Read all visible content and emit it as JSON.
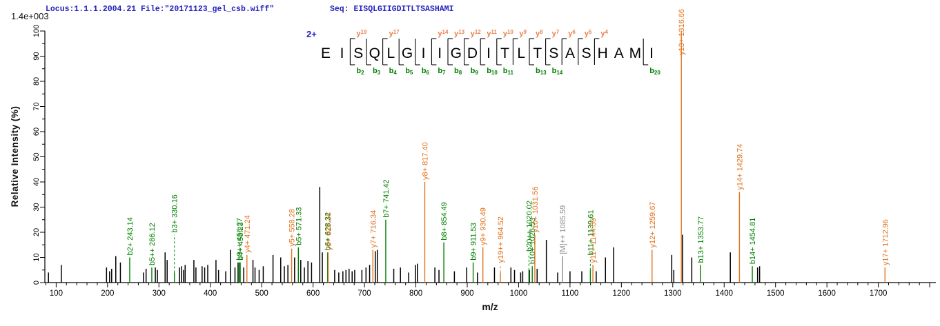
{
  "header": {
    "locus_file": "Locus:1.1.1.2004.21 File:\"20171123_gel_csb.wiff\"",
    "seq": "Seq: EISQLGIIGDITLTSASHAMI",
    "intensity_scale": "1.4e+003"
  },
  "colors": {
    "b_ion": "#008000",
    "y_ion": "#E2731E",
    "y_ladder": "#E8814F",
    "other_ion": "#8C8C8C",
    "header_text": "#2222BB",
    "charge_text": "#2222CC",
    "axis": "#000000",
    "peak": "#000000"
  },
  "chart_data": {
    "type": "bar",
    "xlabel": "m/z",
    "ylabel": "Relative  Intensity (%)",
    "x_axis": {
      "min": 78,
      "max": 1812,
      "label_start": 100,
      "label_end": 1700,
      "major_step": 100,
      "minor_step": 20
    },
    "y_axis": {
      "min": 0,
      "max": 100,
      "major_step": 10,
      "minor_step": 5
    },
    "precursor_charge": "2+",
    "peptide": {
      "residues": [
        "E",
        "I",
        "S",
        "Q",
        "L",
        "G",
        "I",
        "I",
        "G",
        "D",
        "I",
        "T",
        "L",
        "T",
        "S",
        "A",
        "S",
        "H",
        "A",
        "M",
        "I"
      ],
      "y_ions": [
        {
          "n": "19",
          "gap": 2
        },
        {
          "n": "17",
          "gap": 4
        },
        {
          "n": "14",
          "gap": 7
        },
        {
          "n": "13",
          "gap": 8
        },
        {
          "n": "12",
          "gap": 9
        },
        {
          "n": "11",
          "gap": 10
        },
        {
          "n": "10",
          "gap": 11
        },
        {
          "n": "9",
          "gap": 12
        },
        {
          "n": "8",
          "gap": 13
        },
        {
          "n": "7",
          "gap": 14
        },
        {
          "n": "6",
          "gap": 15
        },
        {
          "n": "5",
          "gap": 16
        },
        {
          "n": "4",
          "gap": 17
        }
      ],
      "b_ions": [
        {
          "n": "2",
          "gap": 2
        },
        {
          "n": "3",
          "gap": 3
        },
        {
          "n": "4",
          "gap": 4
        },
        {
          "n": "5",
          "gap": 5
        },
        {
          "n": "6",
          "gap": 6
        },
        {
          "n": "7",
          "gap": 7
        },
        {
          "n": "8",
          "gap": 8
        },
        {
          "n": "9",
          "gap": 9
        },
        {
          "n": "10",
          "gap": 10
        },
        {
          "n": "11",
          "gap": 11
        },
        {
          "n": "13",
          "gap": 13
        },
        {
          "n": "14",
          "gap": 14
        },
        {
          "n": "20",
          "gap": 20
        }
      ]
    },
    "labeled_peaks": [
      {
        "series": "b",
        "label": "b2+ 243.14",
        "mz": 243.14,
        "intensity": 10
      },
      {
        "series": "b",
        "label": "b5++ 286.12",
        "mz": 286.12,
        "intensity": 6
      },
      {
        "series": "b",
        "label": "b3+ 330.16",
        "mz": 330.16,
        "intensity": 4,
        "dashed": true,
        "label_at": 19
      },
      {
        "series": "b",
        "label": "b9++ 456.27",
        "mz": 456.27,
        "intensity": 8
      },
      {
        "series": "b",
        "label": "b4+ 458.23",
        "mz": 458.23,
        "intensity": 8
      },
      {
        "series": "y",
        "label": "y4+ 471.24",
        "mz": 471.24,
        "intensity": 11
      },
      {
        "series": "y",
        "label": "y5+ 558.28",
        "mz": 558.28,
        "intensity": 13.5
      },
      {
        "series": "b",
        "label": "b5+ 571.33",
        "mz": 571.33,
        "intensity": 14
      },
      {
        "series": "b",
        "label": "b6+ 628.32",
        "mz": 628.32,
        "intensity": 12
      },
      {
        "series": "y",
        "label": "y6+ 629.34",
        "mz": 629.34,
        "intensity": 12
      },
      {
        "series": "y",
        "label": "y7+ 716.34",
        "mz": 716.34,
        "intensity": 13
      },
      {
        "series": "b",
        "label": "b7+ 741.42",
        "mz": 741.42,
        "intensity": 25
      },
      {
        "series": "y",
        "label": "y8+ 817.40",
        "mz": 817.4,
        "intensity": 40
      },
      {
        "series": "b",
        "label": "b8+ 854.49",
        "mz": 854.49,
        "intensity": 16
      },
      {
        "series": "b",
        "label": "b9+ 911.53",
        "mz": 911.53,
        "intensity": 8
      },
      {
        "series": "y",
        "label": "y9+ 930.49",
        "mz": 930.49,
        "intensity": 14
      },
      {
        "series": "y",
        "label": "y19++ 964.52",
        "mz": 964.52,
        "intensity": 4,
        "dashed": true,
        "label_at": 7
      },
      {
        "series": "b",
        "label": "b20++ 1020.02",
        "mz": 1020.02,
        "intensity": 5,
        "dashed": true,
        "label_at": 11.5
      },
      {
        "series": "b",
        "label": "b10+ 1026.53",
        "mz": 1026.53,
        "intensity": 6.5
      },
      {
        "series": "y",
        "label": "y10+ 1031.56",
        "mz": 1031.56,
        "intensity": 19
      },
      {
        "series": "other",
        "label": "[M]++ 1085.59",
        "mz": 1085.59,
        "intensity": 10.5
      },
      {
        "series": "b",
        "label": "b11+ 1139.61",
        "mz": 1139.61,
        "intensity": 5,
        "dashed": true,
        "label_at": 10
      },
      {
        "series": "y",
        "label": "y11+ 1144.59",
        "mz": 1144.59,
        "intensity": 7
      },
      {
        "series": "y",
        "label": "y12+ 1259.67",
        "mz": 1259.67,
        "intensity": 13
      },
      {
        "series": "y",
        "label": "y13+ 1316.66",
        "mz": 1316.66,
        "intensity": 100
      },
      {
        "series": "b",
        "label": "b13+ 1353.77",
        "mz": 1353.77,
        "intensity": 7
      },
      {
        "series": "y",
        "label": "y14+ 1429.74",
        "mz": 1429.74,
        "intensity": 36
      },
      {
        "series": "b",
        "label": "b14+ 1454.81",
        "mz": 1454.81,
        "intensity": 6.5
      },
      {
        "series": "y",
        "label": "y17+ 1712.96",
        "mz": 1712.96,
        "intensity": 6
      }
    ],
    "unlabeled_peaks": [
      [
        85,
        4
      ],
      [
        110,
        7
      ],
      [
        198,
        6
      ],
      [
        204,
        4.5
      ],
      [
        208,
        5.5
      ],
      [
        216,
        10.5
      ],
      [
        225,
        8
      ],
      [
        270,
        4
      ],
      [
        275,
        5.5
      ],
      [
        293,
        6
      ],
      [
        297,
        5
      ],
      [
        312,
        12
      ],
      [
        316,
        9
      ],
      [
        340,
        6
      ],
      [
        344,
        6.5
      ],
      [
        348,
        5
      ],
      [
        351,
        7
      ],
      [
        368,
        9
      ],
      [
        372,
        6
      ],
      [
        384,
        6.5
      ],
      [
        389,
        6
      ],
      [
        395,
        7
      ],
      [
        411,
        9
      ],
      [
        416,
        5
      ],
      [
        430,
        4.5
      ],
      [
        439,
        13
      ],
      [
        448,
        6
      ],
      [
        454,
        8
      ],
      [
        465,
        6
      ],
      [
        483,
        9
      ],
      [
        487,
        6
      ],
      [
        495,
        5
      ],
      [
        503,
        6.5
      ],
      [
        522,
        11
      ],
      [
        537,
        10
      ],
      [
        544,
        6.5
      ],
      [
        551,
        7
      ],
      [
        564,
        10
      ],
      [
        576,
        9
      ],
      [
        583,
        6
      ],
      [
        590,
        8.5
      ],
      [
        597,
        8
      ],
      [
        613,
        38
      ],
      [
        618,
        12
      ],
      [
        642,
        5
      ],
      [
        650,
        4
      ],
      [
        658,
        4.5
      ],
      [
        664,
        5
      ],
      [
        670,
        5.5
      ],
      [
        676,
        4.5
      ],
      [
        681,
        5
      ],
      [
        695,
        5
      ],
      [
        703,
        6
      ],
      [
        710,
        7
      ],
      [
        721,
        12.5
      ],
      [
        725,
        13
      ],
      [
        757,
        5.5
      ],
      [
        770,
        6
      ],
      [
        786,
        4
      ],
      [
        799,
        7
      ],
      [
        803,
        7.5
      ],
      [
        837,
        6
      ],
      [
        845,
        5
      ],
      [
        875,
        4.5
      ],
      [
        899,
        6
      ],
      [
        920,
        4
      ],
      [
        953,
        6
      ],
      [
        985,
        6
      ],
      [
        992,
        5
      ],
      [
        1004,
        4
      ],
      [
        1008,
        4.5
      ],
      [
        1021,
        5
      ],
      [
        1036,
        5.5
      ],
      [
        1054,
        17
      ],
      [
        1076,
        4
      ],
      [
        1100,
        4.5
      ],
      [
        1123,
        4.5
      ],
      [
        1151,
        4.5
      ],
      [
        1169,
        10
      ],
      [
        1185,
        14
      ],
      [
        1298,
        11
      ],
      [
        1302,
        5
      ],
      [
        1319,
        19
      ],
      [
        1337,
        10
      ],
      [
        1412,
        12
      ],
      [
        1465,
        6
      ],
      [
        1469,
        6.5
      ]
    ]
  }
}
